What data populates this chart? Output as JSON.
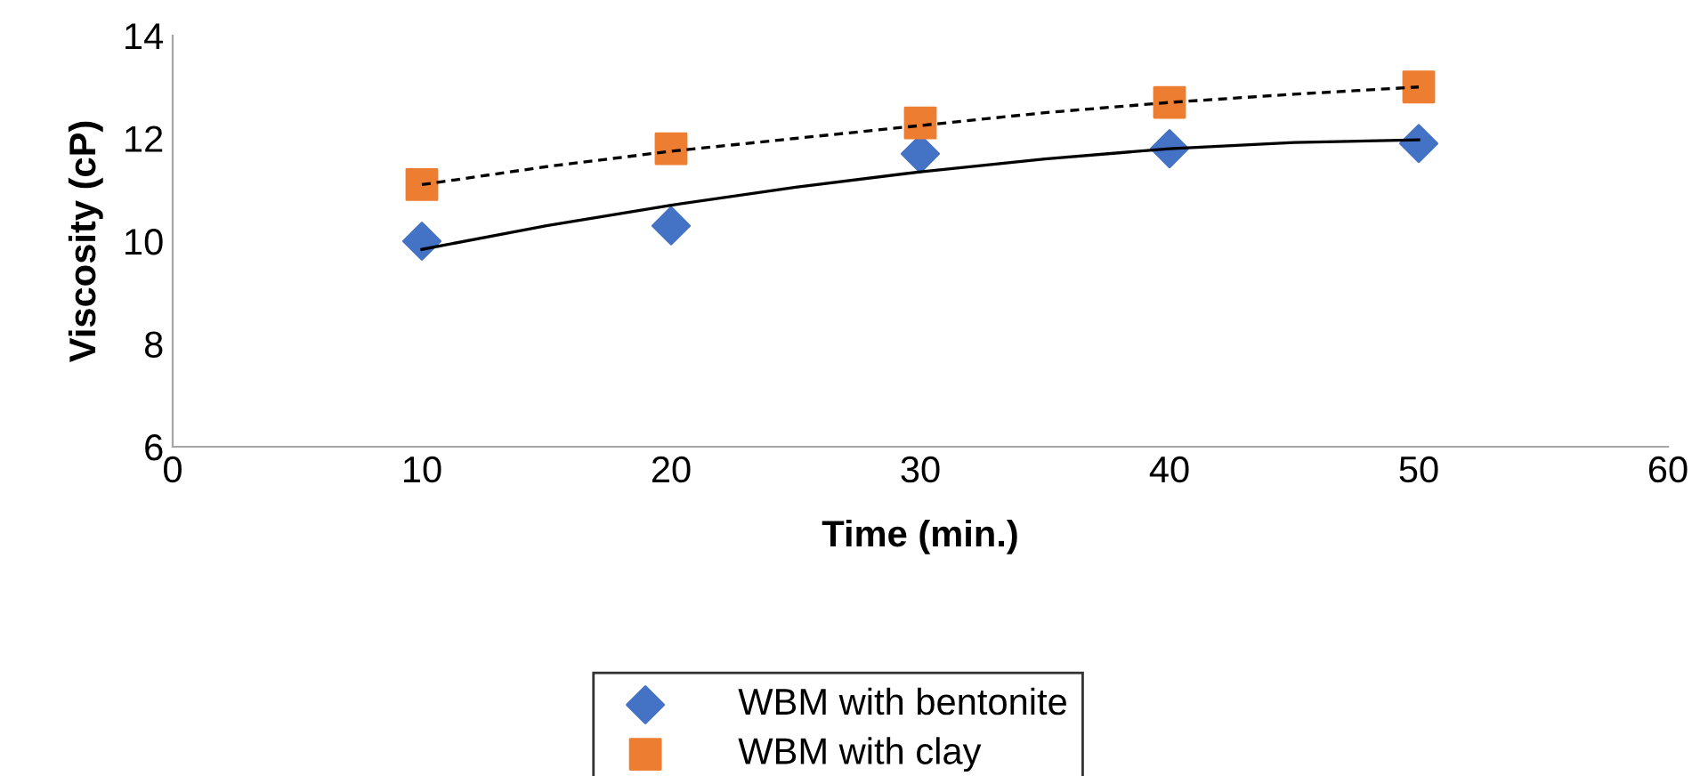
{
  "chart_data": {
    "type": "scatter",
    "xlabel": "Time (min.)",
    "ylabel": "Viscosity (cP)",
    "xlim": [
      0,
      60
    ],
    "ylim": [
      6,
      14
    ],
    "xticks": [
      0,
      10,
      20,
      30,
      40,
      50,
      60
    ],
    "yticks": [
      6,
      8,
      10,
      12,
      14
    ],
    "grid": false,
    "legend": "bottom",
    "series": [
      {
        "name": "WBM with bentonite",
        "color": "#4472c4",
        "marker": "diamond",
        "x": [
          10,
          20,
          30,
          40,
          50
        ],
        "values": [
          10.0,
          10.3,
          11.7,
          11.8,
          11.9
        ]
      },
      {
        "name": "WBM with clay",
        "color": "#ed7d31",
        "marker": "square",
        "x": [
          10,
          20,
          30,
          40,
          50
        ],
        "values": [
          11.1,
          11.8,
          12.3,
          12.7,
          13.0
        ]
      },
      {
        "type": "line",
        "color": "#000000",
        "line_style": "solid",
        "marker": "none",
        "x": [
          10,
          15,
          20,
          25,
          30,
          35,
          40,
          45,
          50
        ],
        "values": [
          9.84,
          10.3,
          10.7,
          11.05,
          11.35,
          11.6,
          11.8,
          11.92,
          11.97
        ]
      },
      {
        "type": "line",
        "color": "#000000",
        "line_style": "dashed",
        "marker": "none",
        "x": [
          10,
          15,
          20,
          25,
          30,
          35,
          40,
          45,
          50
        ],
        "values": [
          11.1,
          11.45,
          11.75,
          12.0,
          12.25,
          12.5,
          12.7,
          12.86,
          13.0
        ]
      }
    ]
  }
}
